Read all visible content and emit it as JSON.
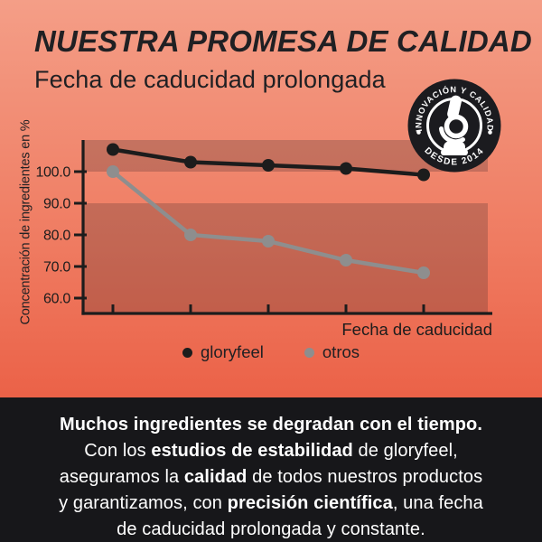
{
  "header": {
    "title": "NUESTRA PROMESA DE CALIDAD",
    "subtitle": "Fecha de caducidad prolongada"
  },
  "badge": {
    "arc_top": "INNOVACIÓN Y CALIDAD",
    "arc_bottom": "DESDE 2014",
    "icon": "microscope-icon"
  },
  "chart_data": {
    "type": "line",
    "ylabel": "Concentración de ingredientes en %",
    "xlabel": "Fecha de caducidad",
    "y_ticks": [
      "100.0",
      "90.0",
      "80.0",
      "70.0",
      "60.0"
    ],
    "x_tick_count": 5,
    "ylim": [
      55,
      110
    ],
    "grid": false,
    "legend_position": "bottom",
    "highlight_bands": [
      [
        100,
        110
      ],
      [
        55,
        90
      ]
    ],
    "series": [
      {
        "name": "gloryfeel",
        "color": "#1C1C1C",
        "values": [
          107,
          103,
          102,
          101,
          99
        ]
      },
      {
        "name": "otros",
        "color": "#8E8E8E",
        "values": [
          100,
          80,
          78,
          72,
          68
        ]
      }
    ]
  },
  "footer": {
    "line1": {
      "pre": "",
      "bold": "Muchos ingredientes se degradan con el tiempo.",
      "post": ""
    },
    "line2": {
      "pre": "Con los ",
      "bold": "estudios de estabilidad",
      "post": " de gloryfeel,"
    },
    "line3": {
      "pre": "aseguramos la ",
      "bold": "calidad",
      "post": " de todos nuestros productos"
    },
    "line4": {
      "pre": "y garantizamos, con ",
      "bold": "precisión científica",
      "post": ", una fecha"
    },
    "line5": {
      "pre": "de caducidad prolongada y constante.",
      "bold": "",
      "post": ""
    }
  },
  "colors": {
    "bg_top": "#F49E87",
    "bg_mid": "#EF7B61",
    "bg_bottom": "#EB6248",
    "text_dark": "#202023",
    "axis": "#1C1C1C",
    "band_overlay": "rgba(40,30,36,0.22)",
    "badge_bg": "#1B1B1F",
    "badge_fg": "#FFFFFF",
    "footer_bg": "#17171A",
    "footer_text": "#FFFFFF"
  }
}
